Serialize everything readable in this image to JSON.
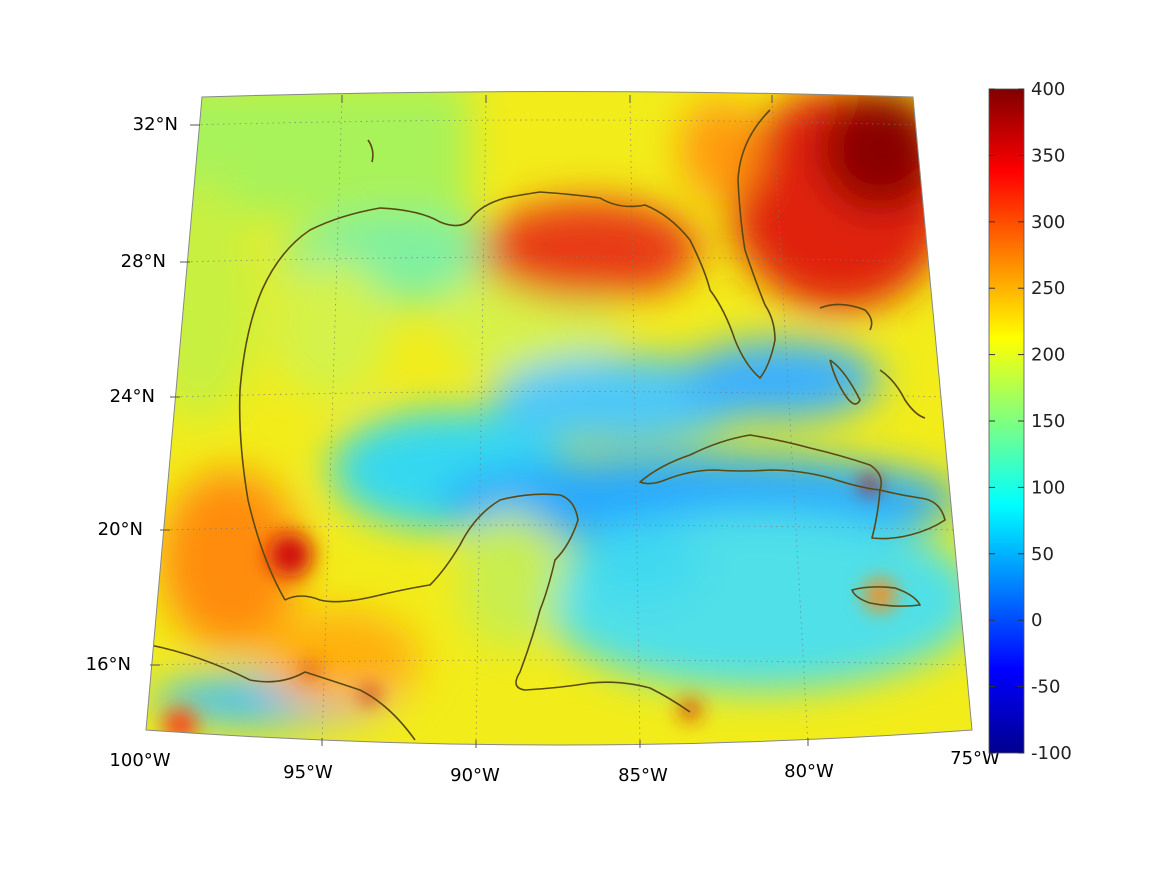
{
  "map": {
    "projection": "conic",
    "region": "Gulf of Mexico and Caribbean",
    "latitude_labels": [
      "32°N",
      "28°N",
      "24°N",
      "20°N",
      "16°N"
    ],
    "longitude_labels": [
      "100°W",
      "95°W",
      "90°W",
      "85°W",
      "80°W",
      "75°W"
    ],
    "coastline_color": "#5a4a12",
    "grid": "dotted",
    "background": "#ffffff"
  },
  "colorbar": {
    "colormap": "jet",
    "min": -100,
    "max": 400,
    "tick_labels": [
      "400",
      "350",
      "300",
      "250",
      "200",
      "150",
      "100",
      "50",
      "0",
      "-50",
      "-100"
    ],
    "colors": [
      "#00008f",
      "#0000ff",
      "#00ffff",
      "#ffff00",
      "#ff0000",
      "#800000"
    ]
  }
}
